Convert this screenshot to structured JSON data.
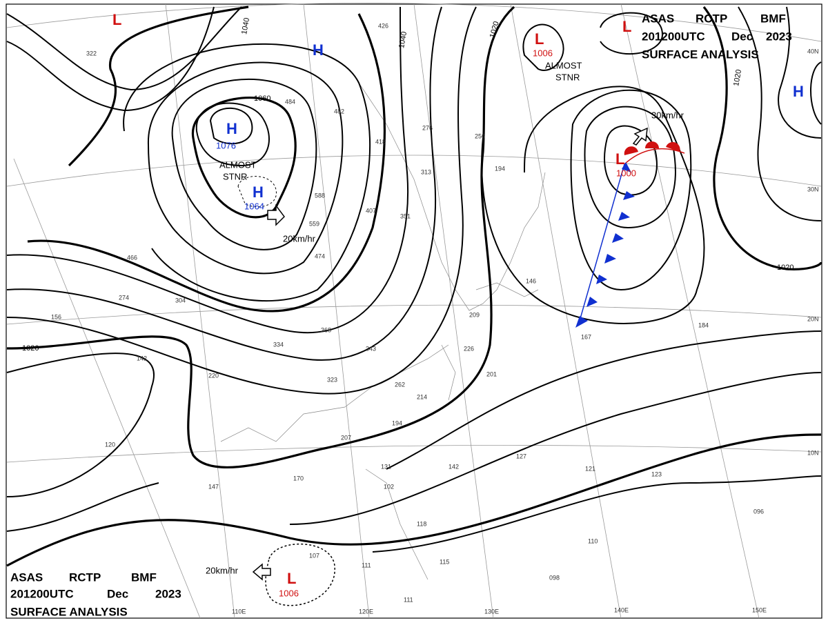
{
  "header_top": {
    "agency": "ASAS",
    "center": "RCTP",
    "office": "BMF",
    "time": "201200UTC",
    "month": "Dec",
    "year": "2023",
    "product": "SURFACE ANALYSIS"
  },
  "header_bottom": {
    "agency": "ASAS",
    "center": "RCTP",
    "office": "BMF",
    "time": "201200UTC",
    "month": "Dec",
    "year": "2023",
    "product": "SURFACE ANALYSIS"
  },
  "systems": [
    {
      "symbol": "L"
    },
    {
      "symbol": "H"
    },
    {
      "symbol": "H",
      "pressure": "1076",
      "note1": "ALMOST",
      "note2": "STNR"
    },
    {
      "symbol": "H",
      "pressure": "1064",
      "motion": "20km/hr"
    },
    {
      "symbol": "L",
      "pressure": "1006",
      "note1": "ALMOST",
      "note2": "STNR"
    },
    {
      "symbol": "L"
    },
    {
      "symbol": "H"
    },
    {
      "symbol": "L",
      "pressure": "1000",
      "motion": "30km/hr"
    },
    {
      "symbol": "L",
      "pressure": "1006",
      "motion": "20km/hr"
    }
  ],
  "isobar_labels": [
    "1040",
    "1060",
    "1040",
    "1020",
    "1020",
    "1020",
    "1020"
  ],
  "lat_labels": [
    "40N",
    "30N",
    "20N",
    "10N"
  ],
  "lon_labels": [
    "110E",
    "120E",
    "130E",
    "140E",
    "150E"
  ],
  "stations": [
    "426",
    "322",
    "484",
    "482",
    "418",
    "276",
    "256",
    "194",
    "313",
    "407",
    "351",
    "588",
    "559",
    "474",
    "466",
    "304",
    "274",
    "156",
    "142",
    "368",
    "334",
    "343",
    "323",
    "262",
    "214",
    "194",
    "220",
    "226",
    "201",
    "209",
    "146",
    "167",
    "184",
    "120",
    "170",
    "147",
    "207",
    "131",
    "102",
    "142",
    "127",
    "121",
    "123",
    "096",
    "118",
    "110",
    "098",
    "107",
    "111",
    "115",
    "111"
  ]
}
